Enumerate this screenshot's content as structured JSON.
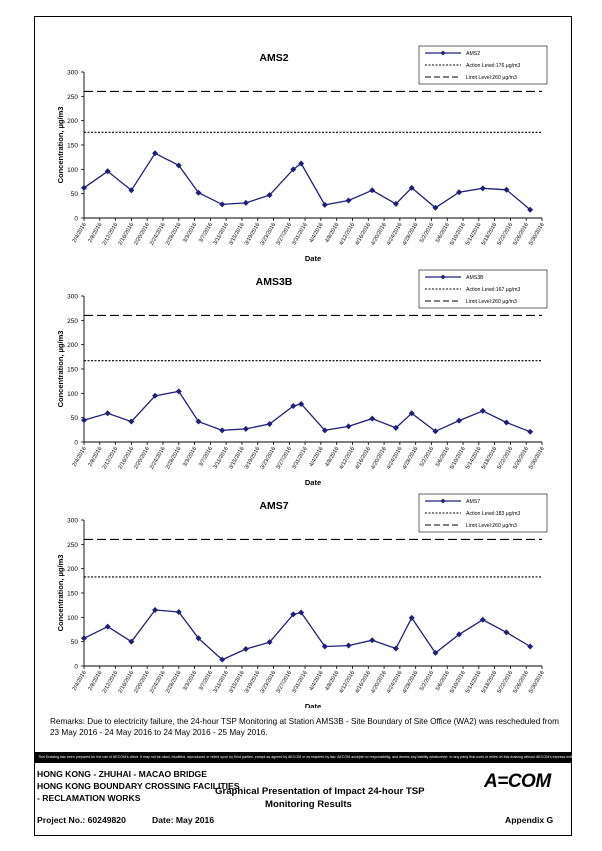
{
  "chart_data": [
    {
      "type": "line",
      "title": "AMS2",
      "xlabel": "Date",
      "ylabel": "Concentration, µg/m3",
      "ylim": [
        0,
        300
      ],
      "yticks": [
        0,
        50,
        100,
        150,
        200,
        250,
        300
      ],
      "legend_position": "top-right",
      "colors": {
        "series": "#1f1f7a",
        "line": "#000000"
      },
      "categories": [
        "2/4/2016",
        "2/8/2016",
        "2/12/2016",
        "2/16/2016",
        "2/20/2016",
        "2/24/2016",
        "2/28/2016",
        "3/3/2016",
        "3/7/2016",
        "3/11/2016",
        "3/15/2016",
        "3/19/2016",
        "3/23/2016",
        "3/27/2016",
        "3/31/2016",
        "4/4/2016",
        "4/8/2016",
        "4/12/2016",
        "4/16/2016",
        "4/20/2016",
        "4/24/2016",
        "4/28/2016",
        "5/2/2016",
        "5/6/2016",
        "5/10/2016",
        "5/14/2016",
        "5/18/2016",
        "5/22/2016",
        "5/26/2016",
        "5/30/2016"
      ],
      "cat_range": [
        "2016-02-04",
        "2016-05-30"
      ],
      "series": [
        {
          "name": "AMS2",
          "points": [
            [
              "2016-02-04",
              62
            ],
            [
              "2016-02-10",
              96
            ],
            [
              "2016-02-16",
              57
            ],
            [
              "2016-02-22",
              133
            ],
            [
              "2016-02-28",
              108
            ],
            [
              "2016-03-04",
              52
            ],
            [
              "2016-03-10",
              28
            ],
            [
              "2016-03-16",
              31
            ],
            [
              "2016-03-22",
              47
            ],
            [
              "2016-03-28",
              100
            ],
            [
              "2016-03-30",
              112
            ],
            [
              "2016-04-05",
              27
            ],
            [
              "2016-04-11",
              36
            ],
            [
              "2016-04-17",
              57
            ],
            [
              "2016-04-23",
              29
            ],
            [
              "2016-04-27",
              62
            ],
            [
              "2016-05-03",
              21
            ],
            [
              "2016-05-09",
              53
            ],
            [
              "2016-05-15",
              61
            ],
            [
              "2016-05-21",
              58
            ],
            [
              "2016-05-27",
              17
            ]
          ]
        }
      ],
      "ref_lines": [
        {
          "name": "Action Level:176 µg/m3",
          "value": 176,
          "style": "dotted"
        },
        {
          "name": "Limit Level:260 µg/m3",
          "value": 260,
          "style": "dashed"
        }
      ]
    },
    {
      "type": "line",
      "title": "AMS3B",
      "xlabel": "Date",
      "ylabel": "Concentration, µg/m3",
      "ylim": [
        0,
        300
      ],
      "yticks": [
        0,
        50,
        100,
        150,
        200,
        250,
        300
      ],
      "legend_position": "top-right",
      "colors": {
        "series": "#1f1f7a",
        "line": "#000000"
      },
      "categories": [
        "2/4/2016",
        "2/8/2016",
        "2/12/2016",
        "2/16/2016",
        "2/20/2016",
        "2/24/2016",
        "2/28/2016",
        "3/3/2016",
        "3/7/2016",
        "3/11/2016",
        "3/15/2016",
        "3/19/2016",
        "3/23/2016",
        "3/27/2016",
        "3/31/2016",
        "4/4/2016",
        "4/8/2016",
        "4/12/2016",
        "4/16/2016",
        "4/20/2016",
        "4/24/2016",
        "4/28/2016",
        "5/2/2016",
        "5/6/2016",
        "5/10/2016",
        "5/14/2016",
        "5/18/2016",
        "5/22/2016",
        "5/26/2016",
        "5/30/2016"
      ],
      "cat_range": [
        "2016-02-04",
        "2016-05-30"
      ],
      "series": [
        {
          "name": "AMS3B",
          "points": [
            [
              "2016-02-04",
              45
            ],
            [
              "2016-02-10",
              59
            ],
            [
              "2016-02-16",
              42
            ],
            [
              "2016-02-22",
              95
            ],
            [
              "2016-02-28",
              104
            ],
            [
              "2016-03-04",
              42
            ],
            [
              "2016-03-10",
              24
            ],
            [
              "2016-03-16",
              27
            ],
            [
              "2016-03-22",
              37
            ],
            [
              "2016-03-28",
              74
            ],
            [
              "2016-03-30",
              78
            ],
            [
              "2016-04-05",
              24
            ],
            [
              "2016-04-11",
              32
            ],
            [
              "2016-04-17",
              48
            ],
            [
              "2016-04-23",
              29
            ],
            [
              "2016-04-27",
              59
            ],
            [
              "2016-05-03",
              22
            ],
            [
              "2016-05-09",
              44
            ],
            [
              "2016-05-15",
              64
            ],
            [
              "2016-05-21",
              40
            ],
            [
              "2016-05-27",
              21
            ]
          ]
        }
      ],
      "ref_lines": [
        {
          "name": "Action Level:167 µg/m3",
          "value": 167,
          "style": "dotted"
        },
        {
          "name": "Limit Level:260 µg/m3",
          "value": 260,
          "style": "dashed"
        }
      ]
    },
    {
      "type": "line",
      "title": "AMS7",
      "xlabel": "Date",
      "ylabel": "Concentration, µg/m3",
      "ylim": [
        0,
        300
      ],
      "yticks": [
        0,
        50,
        100,
        150,
        200,
        250,
        300
      ],
      "legend_position": "top-right",
      "colors": {
        "series": "#1f1f7a",
        "line": "#000000"
      },
      "categories": [
        "2/4/2016",
        "2/8/2016",
        "2/12/2016",
        "2/16/2016",
        "2/20/2016",
        "2/24/2016",
        "2/28/2016",
        "3/3/2016",
        "3/7/2016",
        "3/11/2016",
        "3/15/2016",
        "3/19/2016",
        "3/23/2016",
        "3/27/2016",
        "3/31/2016",
        "4/4/2016",
        "4/8/2016",
        "4/12/2016",
        "4/16/2016",
        "4/20/2016",
        "4/24/2016",
        "4/28/2016",
        "5/2/2016",
        "5/6/2016",
        "5/10/2016",
        "5/14/2016",
        "5/18/2016",
        "5/22/2016",
        "5/26/2016",
        "5/30/2016"
      ],
      "cat_range": [
        "2016-02-04",
        "2016-05-30"
      ],
      "series": [
        {
          "name": "AMS7",
          "points": [
            [
              "2016-02-04",
              57
            ],
            [
              "2016-02-10",
              81
            ],
            [
              "2016-02-16",
              50
            ],
            [
              "2016-02-22",
              115
            ],
            [
              "2016-02-28",
              111
            ],
            [
              "2016-03-04",
              57
            ],
            [
              "2016-03-10",
              13
            ],
            [
              "2016-03-16",
              35
            ],
            [
              "2016-03-22",
              49
            ],
            [
              "2016-03-28",
              106
            ],
            [
              "2016-03-30",
              110
            ],
            [
              "2016-04-05",
              40
            ],
            [
              "2016-04-11",
              42
            ],
            [
              "2016-04-17",
              53
            ],
            [
              "2016-04-23",
              36
            ],
            [
              "2016-04-27",
              99
            ],
            [
              "2016-05-03",
              27
            ],
            [
              "2016-05-09",
              65
            ],
            [
              "2016-05-15",
              95
            ],
            [
              "2016-05-21",
              69
            ],
            [
              "2016-05-27",
              40
            ]
          ]
        }
      ],
      "ref_lines": [
        {
          "name": "Action Level:183 µg/m3",
          "value": 183,
          "style": "dotted"
        },
        {
          "name": "Limit Level:260 µg/m3",
          "value": 260,
          "style": "dashed"
        }
      ]
    }
  ],
  "remarks": "Remarks: Due to electricity failure, the 24-hour TSP Monitoring at Station AMS3B - Site Boundary of Site Office (WA2) was rescheduled from 23 May 2016 - 24 May 2016 to 24 May 2016 - 25 May 2016.",
  "disclaimer": "This Drawing has been prepared for the use of AECOM's client. It may not be used, modified, reproduced or relied upon by third parties, except as agreed by AECOM or as required by law. AECOM accepts no responsibility, and denies any liability whatsoever, to any party that uses or relies on this drawing without AECOM's express written consent.",
  "footer": {
    "project_line1": "HONG KONG - ZHUHAI - MACAO BRIDGE",
    "project_line2": "HONG KONG BOUNDARY CROSSING FACILITIES",
    "project_line3": "- RECLAMATION WORKS",
    "drawing_title_1": "Graphical Presentation of Impact 24-hour TSP",
    "drawing_title_2": "Monitoring Results",
    "project_no": "Project No.: 60249820",
    "date": "Date: May 2016",
    "appendix": "Appendix G",
    "logo": "AECOM"
  }
}
